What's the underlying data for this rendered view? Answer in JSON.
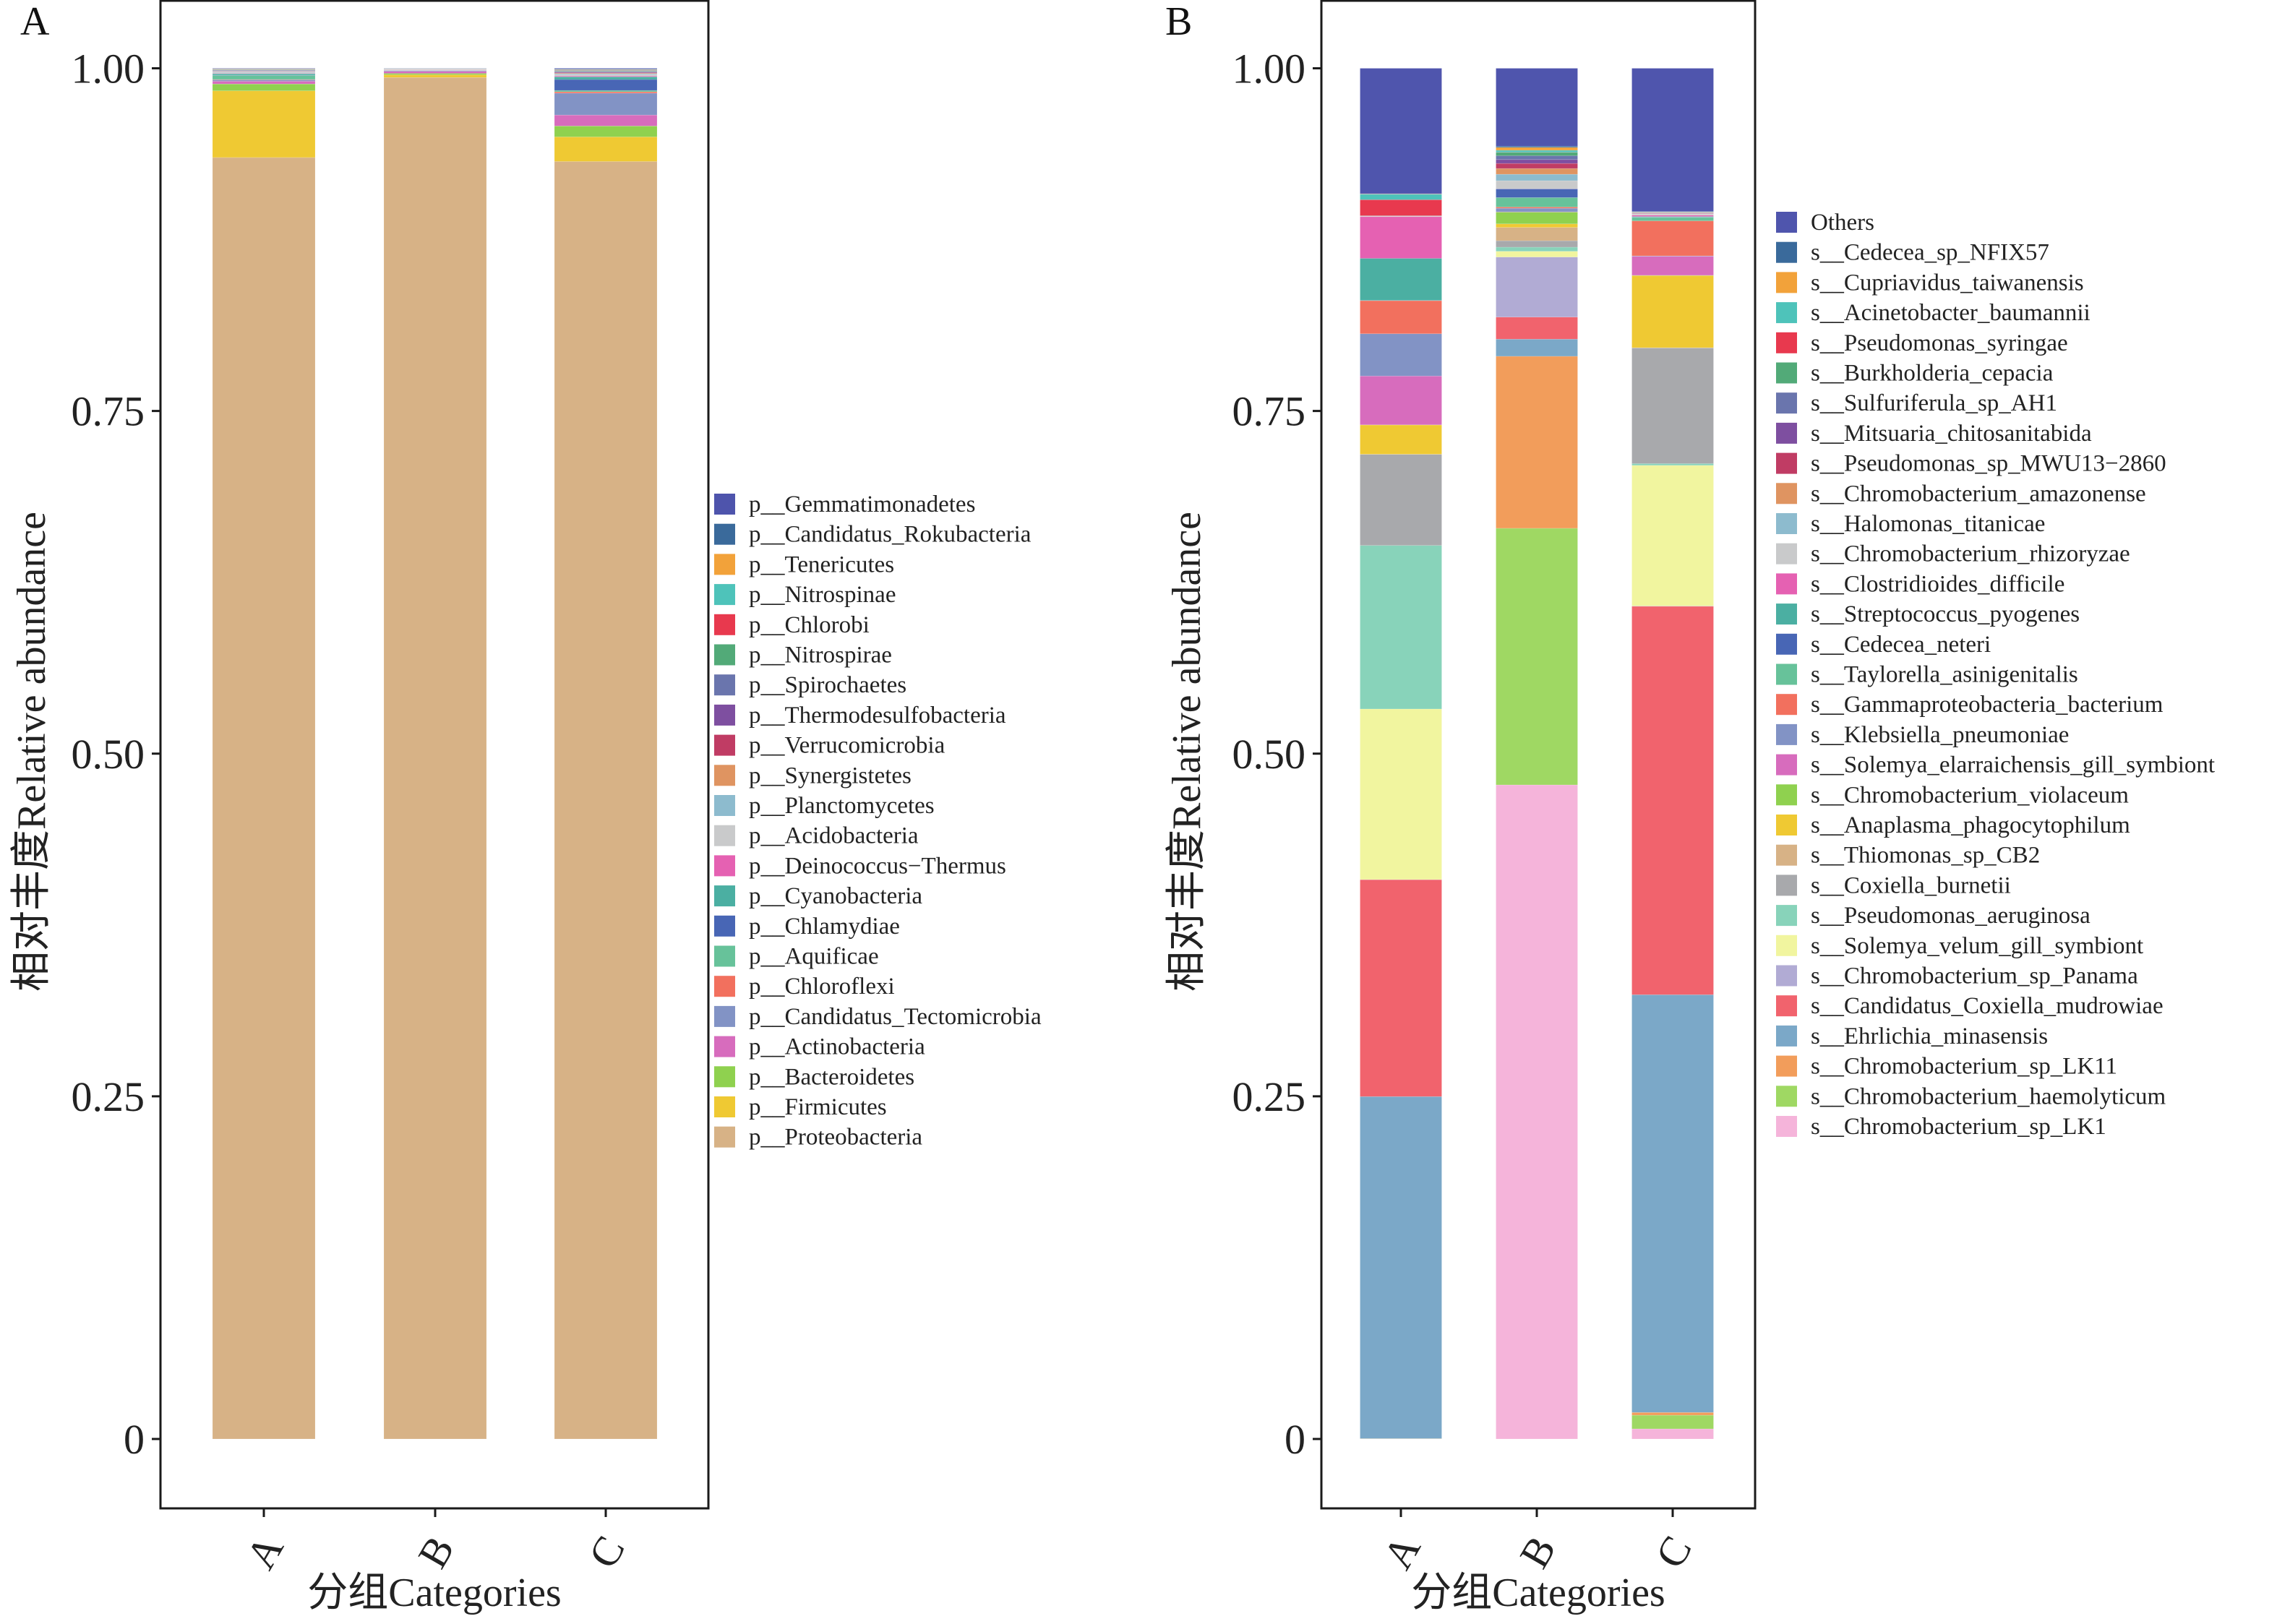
{
  "chart_data": [
    {
      "panel": "A",
      "type": "bar",
      "stacked": true,
      "title": "",
      "xlabel": "分组Categories",
      "ylabel": "相对丰度Relative abundance",
      "ylim": [
        0,
        1
      ],
      "yticks": [
        "0",
        "0.25",
        "0.50",
        "0.75",
        "1.00"
      ],
      "ytick_values": [
        0,
        0.25,
        0.5,
        0.75,
        1.0
      ],
      "categories": [
        "A",
        "B",
        "C"
      ],
      "legend_position": "right",
      "series": [
        {
          "name": "p__Gemmatimonadetes",
          "color": "#4E54AC",
          "values": [
            0.0003,
            0.0001,
            0.0005
          ]
        },
        {
          "name": "p__Candidatus_Rokubacteria",
          "color": "#3A6A9B",
          "values": [
            0.0002,
            0.0001,
            0.0004
          ]
        },
        {
          "name": "p__Tenericutes",
          "color": "#F2A23A",
          "values": [
            0.0002,
            0.0001,
            0.0003
          ]
        },
        {
          "name": "p__Nitrospinae",
          "color": "#4EC3BA",
          "values": [
            0.0002,
            0.0001,
            0.0004
          ]
        },
        {
          "name": "p__Chlorobi",
          "color": "#E8394E",
          "values": [
            0.0002,
            0.0001,
            0.0003
          ]
        },
        {
          "name": "p__Nitrospirae",
          "color": "#52AA78",
          "values": [
            0.0003,
            0.0001,
            0.0004
          ]
        },
        {
          "name": "p__Spirochaetes",
          "color": "#6A75AD",
          "values": [
            0.0004,
            0.0001,
            0.0005
          ]
        },
        {
          "name": "p__Thermodesulfobacteria",
          "color": "#7E4FA0",
          "values": [
            0.0002,
            0.0001,
            0.0004
          ]
        },
        {
          "name": "p__Verrucomicrobia",
          "color": "#C03C64",
          "values": [
            0.0002,
            0.0001,
            0.0004
          ]
        },
        {
          "name": "p__Synergistetes",
          "color": "#DF9461",
          "values": [
            0.0002,
            0.0001,
            0.0004
          ]
        },
        {
          "name": "p__Planctomycetes",
          "color": "#8DBBCE",
          "values": [
            0.0004,
            0.0001,
            0.0006
          ]
        },
        {
          "name": "p__Acidobacteria",
          "color": "#C9CACB",
          "values": [
            0.0008,
            0.0001,
            0.001
          ]
        },
        {
          "name": "p__Deinococcus-Thermus",
          "color": "#E561B2",
          "values": [
            0.0003,
            0.0001,
            0.0006
          ]
        },
        {
          "name": "p__Cyanobacteria",
          "color": "#4BAFA2",
          "values": [
            0.001,
            0.0001,
            0.002
          ]
        },
        {
          "name": "p__Chlamydiae",
          "color": "#4866B5",
          "values": [
            0.0003,
            0.0001,
            0.008
          ]
        },
        {
          "name": "p__Aquificae",
          "color": "#67C29A",
          "values": [
            0.003,
            0.0001,
            0.001
          ]
        },
        {
          "name": "p__Chloroflexi",
          "color": "#F2705E",
          "values": [
            0.0003,
            0.0001,
            0.001
          ]
        },
        {
          "name": "p__Candidatus_Tectomicrobia",
          "color": "#8293C5",
          "values": [
            0.001,
            0.0005,
            0.016
          ]
        },
        {
          "name": "p__Actinobacteria",
          "color": "#D76CBD",
          "values": [
            0.002,
            0.0015,
            0.008
          ]
        },
        {
          "name": "p__Bacteroidetes",
          "color": "#8FD14F",
          "values": [
            0.005,
            0.001,
            0.008
          ]
        },
        {
          "name": "p__Firmicutes",
          "color": "#EFC933",
          "values": [
            0.049,
            0.002,
            0.018
          ]
        },
        {
          "name": "p__Proteobacteria",
          "color": "#D7B286",
          "values": [
            0.941,
            0.995,
            0.935
          ]
        }
      ]
    },
    {
      "panel": "B",
      "type": "bar",
      "stacked": true,
      "title": "",
      "xlabel": "分组Categories",
      "ylabel": "相对丰度Relative abundance",
      "ylim": [
        0,
        1
      ],
      "yticks": [
        "0",
        "0.25",
        "0.50",
        "0.75",
        "1.00"
      ],
      "ytick_values": [
        0,
        0.25,
        0.5,
        0.75,
        1.0
      ],
      "categories": [
        "A",
        "B",
        "C"
      ],
      "legend_position": "right",
      "series": [
        {
          "name": "Others",
          "color": "#4F55AD",
          "values": [
            0.0917,
            0.0568,
            0.1047
          ]
        },
        {
          "name": "s__Cedecea_sp_NFIX57",
          "color": "#3A6A9B",
          "values": [
            0.0002,
            0.0009,
            0.0002
          ]
        },
        {
          "name": "s__Cupriavidus_taiwanensis",
          "color": "#F2A23A",
          "values": [
            0.0002,
            0.0021,
            0.0002
          ]
        },
        {
          "name": "s__Acinetobacter_baumannii",
          "color": "#4EC3BA",
          "values": [
            0.004,
            0.0014,
            0.0002
          ]
        },
        {
          "name": "s__Pseudomonas_syringae",
          "color": "#E8394E",
          "values": [
            0.0117,
            0.0001,
            0.0002
          ]
        },
        {
          "name": "s__Burkholderia_cepacia",
          "color": "#52AA78",
          "values": [
            0.0001,
            0.0025,
            0.0002
          ]
        },
        {
          "name": "s__Sulfuriferula_sp_AH1",
          "color": "#6A75AD",
          "values": [
            0.0001,
            0.0028,
            0.0002
          ]
        },
        {
          "name": "s__Mitsuaria_chitosanitabida",
          "color": "#7E4FA0",
          "values": [
            0.0001,
            0.0028,
            0.0002
          ]
        },
        {
          "name": "s__Pseudomonas_sp_MWU13-2860",
          "color": "#C03C64",
          "values": [
            0.0001,
            0.0037,
            0.0002
          ]
        },
        {
          "name": "s__Chromobacterium_amazonense",
          "color": "#DF9461",
          "values": [
            0.0001,
            0.0042,
            0.0002
          ]
        },
        {
          "name": "s__Halomonas_titanicae",
          "color": "#8DBBCE",
          "values": [
            0.0001,
            0.0047,
            0.0002
          ]
        },
        {
          "name": "s__Chromobacterium_rhizoryzae",
          "color": "#C9CACB",
          "values": [
            0.0001,
            0.0058,
            0.0006
          ]
        },
        {
          "name": "s__Clostridioides_difficile",
          "color": "#E561B2",
          "values": [
            0.0305,
            0.0001,
            0.001
          ]
        },
        {
          "name": "s__Streptococcus_pyogenes",
          "color": "#4BAFA2",
          "values": [
            0.0307,
            0.0001,
            0.0004
          ]
        },
        {
          "name": "s__Cedecea_neteri",
          "color": "#4866B5",
          "values": [
            0.0001,
            0.0063,
            0.0002
          ]
        },
        {
          "name": "s__Taylorella_asinigenitalis",
          "color": "#67C29A",
          "values": [
            0.0001,
            0.0069,
            0.0026
          ]
        },
        {
          "name": "s__Gammaproteobacteria_bacterium",
          "color": "#F2705E",
          "values": [
            0.0242,
            0.0009,
            0.0256
          ]
        },
        {
          "name": "s__Klebsiella_pneumoniae",
          "color": "#8293C5",
          "values": [
            0.0309,
            0.0026,
            0.0003
          ]
        },
        {
          "name": "s__Solemya_elarraichensis_gill_symbiont",
          "color": "#D76CBD",
          "values": [
            0.0357,
            0.0002,
            0.0139
          ]
        },
        {
          "name": "s__Chromobacterium_violaceum",
          "color": "#8FD14F",
          "values": [
            0.0001,
            0.0086,
            0.0002
          ]
        },
        {
          "name": "s__Anaplasma_phagocytophilum",
          "color": "#EFC933",
          "values": [
            0.0214,
            0.0026,
            0.0527
          ]
        },
        {
          "name": "s__Thiomonas_sp_CB2",
          "color": "#D7B286",
          "values": [
            0.0001,
            0.0097,
            0.0002
          ]
        },
        {
          "name": "s__Coxiella_burnetii",
          "color": "#A8A9AC",
          "values": [
            0.0666,
            0.0047,
            0.0845
          ]
        },
        {
          "name": "s__Pseudomonas_aeruginosa",
          "color": "#88D3BA",
          "values": [
            0.1196,
            0.003,
            0.0013
          ]
        },
        {
          "name": "s__Solemya_velum_gill_symbiont",
          "color": "#F1F59F",
          "values": [
            0.1247,
            0.0042,
            0.1028
          ]
        },
        {
          "name": "s__Chromobacterium_sp_Panama",
          "color": "#B1ABD4",
          "values": [
            0.0001,
            0.0438,
            0.0002
          ]
        },
        {
          "name": "s__Candidatus_Coxiella_mudrowiae",
          "color": "#F1636D",
          "values": [
            0.1586,
            0.0161,
            0.2839
          ]
        },
        {
          "name": "s__Ehrlichia_minasensis",
          "color": "#7BA8C8",
          "values": [
            0.2501,
            0.0125,
            0.3053
          ]
        },
        {
          "name": "s__Chromobacterium_sp_LK11",
          "color": "#F29D5B",
          "values": [
            0.0001,
            0.1255,
            0.002
          ]
        },
        {
          "name": "s__Chromobacterium_haemolyticum",
          "color": "#9FD863",
          "values": [
            0.0001,
            0.1872,
            0.01
          ]
        },
        {
          "name": "s__Chromobacterium_sp_LK1",
          "color": "#F5B4DA",
          "values": [
            0.0001,
            0.4772,
            0.0074
          ]
        }
      ]
    }
  ],
  "panels": {
    "A": {
      "label": "A"
    },
    "B": {
      "label": "B"
    }
  }
}
